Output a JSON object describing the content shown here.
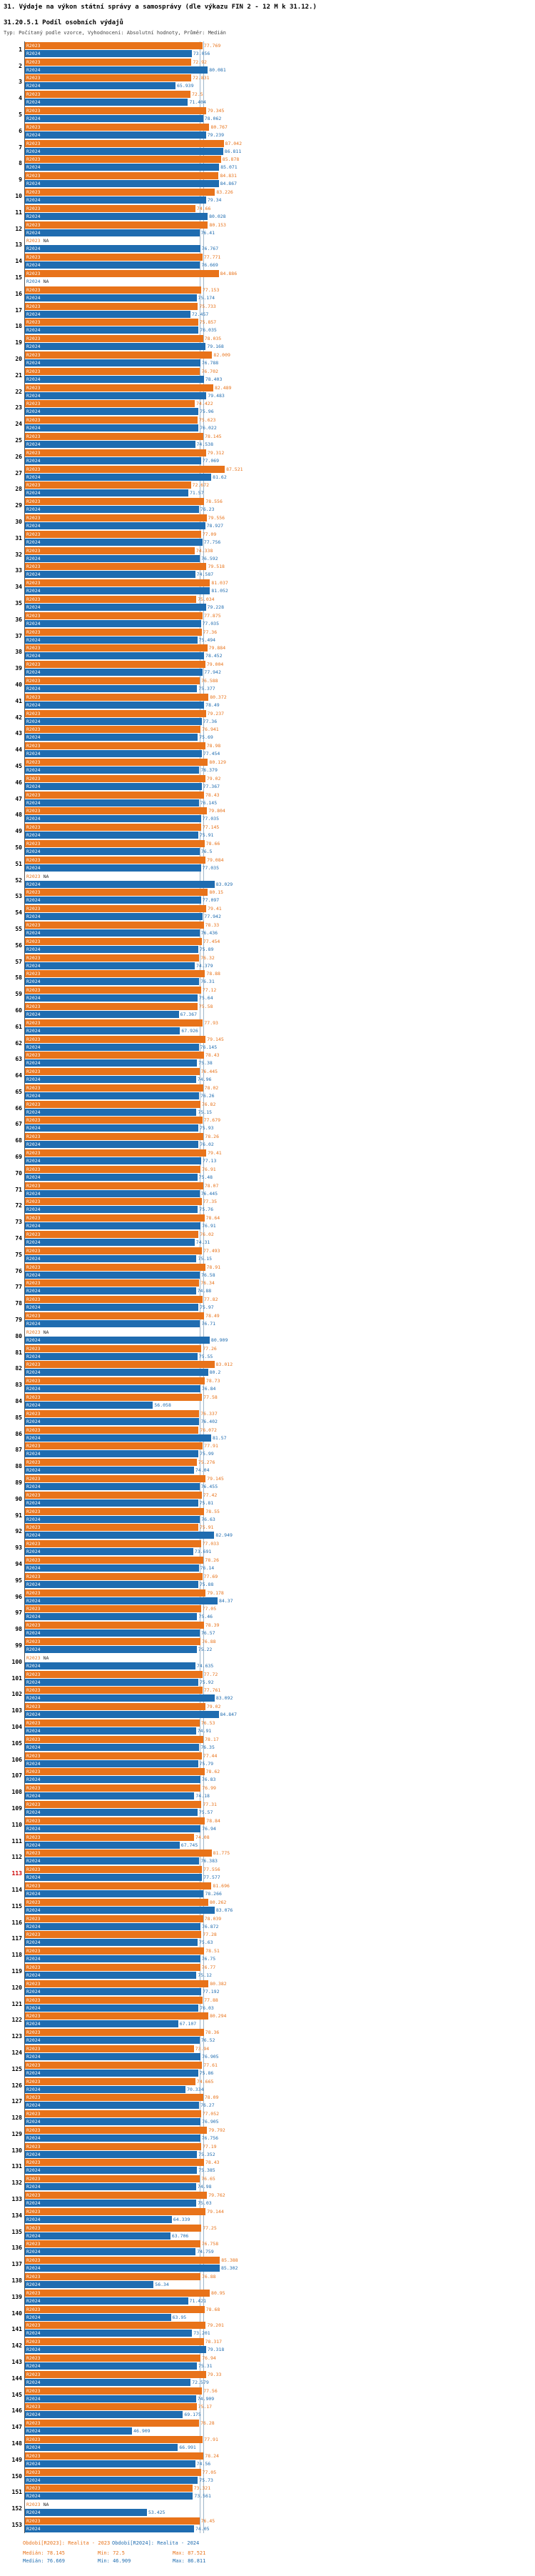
{
  "header": {
    "title": "31. Výdaje na výkon státní správy a samosprávy (dle výkazu FIN 2 - 12 M k 31.12.)",
    "subtitle": "31.20.5.1 Podíl osobních výdajů",
    "meta": "Typ: Počítaný podle vzorce, Vyhodnocení: Absolutní hodnoty, Průměr: Medián"
  },
  "footer": {
    "legend": {
      "r2023": "Období[R2023]: Realita - 2023",
      "r2024": "Období[R2024]: Realita - 2024"
    },
    "stats": {
      "r2023": {
        "median": "Medián: 78.145",
        "min": "Min: 72.5",
        "max": "Max: 87.521"
      },
      "r2024": {
        "median": "Medián: 76.669",
        "min": "Min: 46.909",
        "max": "Max: 86.811"
      }
    }
  },
  "chart_data": {
    "type": "bar",
    "orientation": "horizontal",
    "title": "31.20.5.1 Podíl osobních výdajů",
    "xlabel": "",
    "ylabel": "",
    "legend_position": "bottom",
    "grid": "median-lines-only",
    "na_label": "NA",
    "series_labels": {
      "r2023": "R2023",
      "r2024": "R2024"
    },
    "colors": {
      "r2023": "#e8731a",
      "r2024": "#1f6cb0",
      "highlight": "#cc0000"
    },
    "medians": {
      "r2023": 78.145,
      "r2024": 76.669
    },
    "mins": {
      "r2023": 72.5,
      "r2024": 46.909
    },
    "maxs": {
      "r2023": 87.521,
      "r2024": 86.811
    },
    "highlight_rows": [
      113
    ],
    "columns": [
      "id",
      "r2023",
      "r2024"
    ],
    "rows": [
      [
        1,
        77.769,
        73.056
      ],
      [
        2,
        72.92,
        80.081
      ],
      [
        3,
        72.831,
        65.939
      ],
      [
        4,
        72.5,
        71.404
      ],
      [
        5,
        79.345,
        78.062
      ],
      [
        6,
        80.767,
        79.239
      ],
      [
        7,
        87.042,
        86.811
      ],
      [
        8,
        85.878,
        85.071
      ],
      [
        9,
        84.831,
        84.867
      ],
      [
        10,
        83.226,
        79.34
      ],
      [
        11,
        74.66,
        80.028
      ],
      [
        12,
        80.153,
        76.41
      ],
      [
        13,
        null,
        76.767
      ],
      [
        14,
        77.771,
        76.669
      ],
      [
        15,
        84.886,
        null
      ],
      [
        16,
        77.153,
        75.174
      ],
      [
        17,
        75.733,
        72.457
      ],
      [
        18,
        75.857,
        76.035
      ],
      [
        19,
        78.035,
        79.168
      ],
      [
        20,
        82.009,
        76.788
      ],
      [
        21,
        76.702,
        78.403
      ],
      [
        22,
        82.489,
        79.483
      ],
      [
        23,
        74.422,
        75.96
      ],
      [
        24,
        75.623,
        76.022
      ],
      [
        25,
        78.145,
        74.538
      ],
      [
        26,
        79.312,
        77.069
      ],
      [
        27,
        87.521,
        81.62
      ],
      [
        28,
        72.672,
        71.57
      ],
      [
        29,
        78.556,
        76.23
      ],
      [
        30,
        79.556,
        78.927
      ],
      [
        31,
        77.09,
        77.756
      ],
      [
        32,
        74.338,
        76.592
      ],
      [
        33,
        79.518,
        74.587
      ],
      [
        34,
        81.037,
        81.052
      ],
      [
        35,
        75.034,
        79.228
      ],
      [
        36,
        77.875,
        77.035
      ],
      [
        37,
        77.36,
        75.494
      ],
      [
        38,
        79.884,
        78.452
      ],
      [
        39,
        79.004,
        77.942
      ],
      [
        40,
        76.588,
        75.377
      ],
      [
        41,
        80.372,
        78.49
      ],
      [
        42,
        79.237,
        77.36
      ],
      [
        43,
        76.941,
        75.69
      ],
      [
        44,
        78.98,
        77.454
      ],
      [
        45,
        80.129,
        76.379
      ],
      [
        46,
        79.02,
        77.367
      ],
      [
        47,
        78.43,
        76.145
      ],
      [
        48,
        79.804,
        77.035
      ],
      [
        49,
        77.145,
        75.91
      ],
      [
        50,
        78.66,
        76.5
      ],
      [
        51,
        79.084,
        77.035
      ],
      [
        52,
        null,
        83.029
      ],
      [
        53,
        80.15,
        77.097
      ],
      [
        54,
        79.41,
        77.942
      ],
      [
        55,
        78.33,
        76.436
      ],
      [
        56,
        77.454,
        75.89
      ],
      [
        57,
        76.32,
        74.379
      ],
      [
        58,
        78.88,
        76.31
      ],
      [
        59,
        77.12,
        75.64
      ],
      [
        60,
        75.58,
        67.367
      ],
      [
        61,
        77.93,
        67.926
      ],
      [
        62,
        79.145,
        76.145
      ],
      [
        63,
        78.43,
        75.38
      ],
      [
        64,
        76.445,
        74.96
      ],
      [
        65,
        78.02,
        76.26
      ],
      [
        66,
        76.82,
        75.15
      ],
      [
        67,
        77.679,
        75.93
      ],
      [
        68,
        78.26,
        76.02
      ],
      [
        69,
        79.41,
        77.13
      ],
      [
        70,
        76.91,
        75.48
      ],
      [
        71,
        78.07,
        76.445
      ],
      [
        72,
        77.35,
        75.76
      ],
      [
        73,
        78.64,
        76.91
      ],
      [
        74,
        76.02,
        74.31
      ],
      [
        75,
        77.493,
        75.15
      ],
      [
        76,
        78.91,
        76.58
      ],
      [
        77,
        76.34,
        74.88
      ],
      [
        78,
        77.82,
        75.97
      ],
      [
        79,
        78.49,
        76.71
      ],
      [
        80,
        null,
        80.909
      ],
      [
        81,
        77.26,
        75.55
      ],
      [
        82,
        83.012,
        80.2
      ],
      [
        83,
        78.73,
        76.84
      ],
      [
        84,
        77.58,
        56.058
      ],
      [
        85,
        76.337,
        76.402
      ],
      [
        86,
        76.072,
        81.57
      ],
      [
        87,
        77.91,
        75.99
      ],
      [
        88,
        75.276,
        74.04
      ],
      [
        89,
        79.145,
        76.455
      ],
      [
        90,
        77.42,
        75.81
      ],
      [
        91,
        78.55,
        76.63
      ],
      [
        92,
        75.91,
        82.949
      ],
      [
        93,
        77.033,
        73.691
      ],
      [
        94,
        78.26,
        76.14
      ],
      [
        95,
        77.69,
        75.88
      ],
      [
        96,
        79.178,
        84.37
      ],
      [
        97,
        77.05,
        75.46
      ],
      [
        98,
        78.39,
        76.57
      ],
      [
        99,
        76.88,
        75.22
      ],
      [
        100,
        null,
        74.635
      ],
      [
        101,
        77.72,
        75.92
      ],
      [
        102,
        77.761,
        83.092
      ],
      [
        103,
        79.02,
        84.847
      ],
      [
        104,
        76.53,
        74.91
      ],
      [
        105,
        78.17,
        76.35
      ],
      [
        106,
        77.44,
        75.79
      ],
      [
        107,
        78.62,
        76.83
      ],
      [
        108,
        76.99,
        74.18
      ],
      [
        109,
        77.31,
        75.57
      ],
      [
        110,
        78.84,
        76.94
      ],
      [
        111,
        74.08,
        67.745
      ],
      [
        112,
        81.775,
        76.383
      ],
      [
        113,
        77.556,
        77.577
      ],
      [
        114,
        81.696,
        78.266
      ],
      [
        115,
        80.262,
        83.076
      ],
      [
        116,
        78.039,
        76.872
      ],
      [
        117,
        77.28,
        75.63
      ],
      [
        118,
        78.51,
        76.75
      ],
      [
        119,
        76.77,
        75.12
      ],
      [
        120,
        80.382,
        77.192
      ],
      [
        121,
        77.88,
        76.03
      ],
      [
        122,
        80.294,
        67.107
      ],
      [
        123,
        78.36,
        76.52
      ],
      [
        124,
        73.94,
        76.905
      ],
      [
        125,
        77.61,
        75.86
      ],
      [
        126,
        74.665,
        70.334
      ],
      [
        127,
        78.09,
        76.27
      ],
      [
        128,
        77.052,
        76.905
      ],
      [
        129,
        79.792,
        76.756
      ],
      [
        130,
        77.19,
        75.352
      ],
      [
        131,
        78.43,
        75.385
      ],
      [
        132,
        76.65,
        74.98
      ],
      [
        133,
        79.762,
        75.03
      ],
      [
        134,
        79.144,
        64.339
      ],
      [
        135,
        77.25,
        63.706
      ],
      [
        136,
        76.758,
        74.759
      ],
      [
        137,
        85.388,
        85.302
      ],
      [
        138,
        76.88,
        56.34
      ],
      [
        139,
        80.95,
        71.421
      ],
      [
        140,
        78.68,
        63.95
      ],
      [
        141,
        79.201,
        73.201
      ],
      [
        142,
        78.317,
        79.318
      ],
      [
        143,
        76.94,
        75.31
      ],
      [
        144,
        79.33,
        72.579
      ],
      [
        145,
        77.56,
        74.909
      ],
      [
        146,
        75.17,
        69.175
      ],
      [
        147,
        76.28,
        46.909
      ],
      [
        148,
        77.91,
        66.991
      ],
      [
        149,
        78.24,
        74.56
      ],
      [
        150,
        77.05,
        75.73
      ],
      [
        151,
        73.321,
        73.561
      ],
      [
        152,
        null,
        53.425
      ],
      [
        153,
        76.45,
        74.05
      ]
    ]
  }
}
